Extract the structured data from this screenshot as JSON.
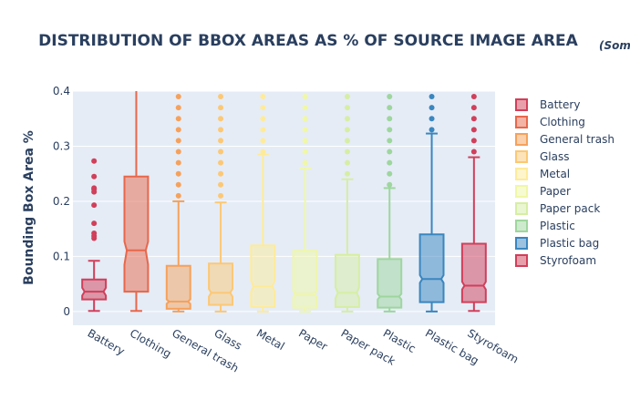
{
  "chart_data": {
    "type": "box",
    "title": "DISTRIBUTION OF BBOX AREAS AS % OF SOURCE IMAGE AREA",
    "subtitle": "(Som",
    "xlabel": "",
    "ylabel": "Bounding Box Area %",
    "ylim": [
      -0.025,
      0.4
    ],
    "yticks": [
      "0",
      "0.1",
      "0.2",
      "0.3",
      "0.4"
    ],
    "ytick_values": [
      0,
      0.1,
      0.2,
      0.3,
      0.4
    ],
    "grid": true,
    "legend_position": "right",
    "notched": true,
    "categories": [
      "Battery",
      "Clothing",
      "General trash",
      "Glass",
      "Metal",
      "Paper",
      "Paper pack",
      "Plastic",
      "Plastic bag",
      "Styrofoam"
    ],
    "series": [
      {
        "name": "Battery",
        "color": "#d13f5a",
        "q1": 0.022,
        "median": 0.036,
        "q3": 0.058,
        "notch_low": 0.029,
        "notch_high": 0.043,
        "lower_fence": 0.001,
        "upper_fence": 0.092,
        "outliers": [
          0.133,
          0.137,
          0.142,
          0.16,
          0.193,
          0.217,
          0.222,
          0.224,
          0.245,
          0.273
        ]
      },
      {
        "name": "Clothing",
        "color": "#e8674b",
        "q1": 0.036,
        "median": 0.111,
        "q3": 0.245,
        "notch_low": 0.085,
        "notch_high": 0.127,
        "lower_fence": 0.001,
        "upper_fence": 0.4,
        "outliers": []
      },
      {
        "name": "General trash",
        "color": "#f6a15b",
        "q1": 0.005,
        "median": 0.018,
        "q3": 0.083,
        "notch_low": 0.014,
        "notch_high": 0.022,
        "lower_fence": 0.0,
        "upper_fence": 0.2,
        "outliers": [
          0.21,
          0.23,
          0.25,
          0.27,
          0.29,
          0.31,
          0.33,
          0.35,
          0.37,
          0.39
        ]
      },
      {
        "name": "Glass",
        "color": "#fcc875",
        "q1": 0.012,
        "median": 0.034,
        "q3": 0.087,
        "notch_low": 0.027,
        "notch_high": 0.041,
        "lower_fence": 0.0,
        "upper_fence": 0.198,
        "outliers": [
          0.21,
          0.23,
          0.25,
          0.27,
          0.29,
          0.31,
          0.33,
          0.35,
          0.37,
          0.39
        ]
      },
      {
        "name": "Metal",
        "color": "#feeb9a",
        "q1": 0.008,
        "median": 0.046,
        "q3": 0.12,
        "notch_low": 0.036,
        "notch_high": 0.056,
        "lower_fence": 0.0,
        "upper_fence": 0.285,
        "outliers": [
          0.29,
          0.31,
          0.33,
          0.35,
          0.37,
          0.39
        ]
      },
      {
        "name": "Paper",
        "color": "#f0f7a6",
        "q1": 0.007,
        "median": 0.032,
        "q3": 0.11,
        "notch_low": 0.026,
        "notch_high": 0.038,
        "lower_fence": 0.0,
        "upper_fence": 0.26,
        "outliers": [
          0.27,
          0.29,
          0.31,
          0.33,
          0.35,
          0.37,
          0.39
        ]
      },
      {
        "name": "Paper pack",
        "color": "#d6eea4",
        "q1": 0.008,
        "median": 0.034,
        "q3": 0.103,
        "notch_low": 0.024,
        "notch_high": 0.044,
        "lower_fence": 0.0,
        "upper_fence": 0.24,
        "outliers": [
          0.25,
          0.27,
          0.29,
          0.31,
          0.33,
          0.35,
          0.37,
          0.39
        ]
      },
      {
        "name": "Plastic",
        "color": "#9ed69e",
        "q1": 0.007,
        "median": 0.027,
        "q3": 0.095,
        "notch_low": 0.022,
        "notch_high": 0.032,
        "lower_fence": 0.0,
        "upper_fence": 0.224,
        "outliers": [
          0.23,
          0.25,
          0.27,
          0.29,
          0.31,
          0.33,
          0.35,
          0.37,
          0.39
        ]
      },
      {
        "name": "Plastic bag",
        "color": "#3a86bf",
        "q1": 0.017,
        "median": 0.059,
        "q3": 0.14,
        "notch_low": 0.052,
        "notch_high": 0.066,
        "lower_fence": 0.0,
        "upper_fence": 0.323,
        "outliers": [
          0.33,
          0.35,
          0.37,
          0.39
        ]
      },
      {
        "name": "Styrofoam",
        "color": "#d13f5a",
        "q1": 0.017,
        "median": 0.047,
        "q3": 0.123,
        "notch_low": 0.04,
        "notch_high": 0.054,
        "lower_fence": 0.001,
        "upper_fence": 0.28,
        "outliers": [
          0.29,
          0.31,
          0.33,
          0.35,
          0.37,
          0.39
        ]
      }
    ]
  }
}
